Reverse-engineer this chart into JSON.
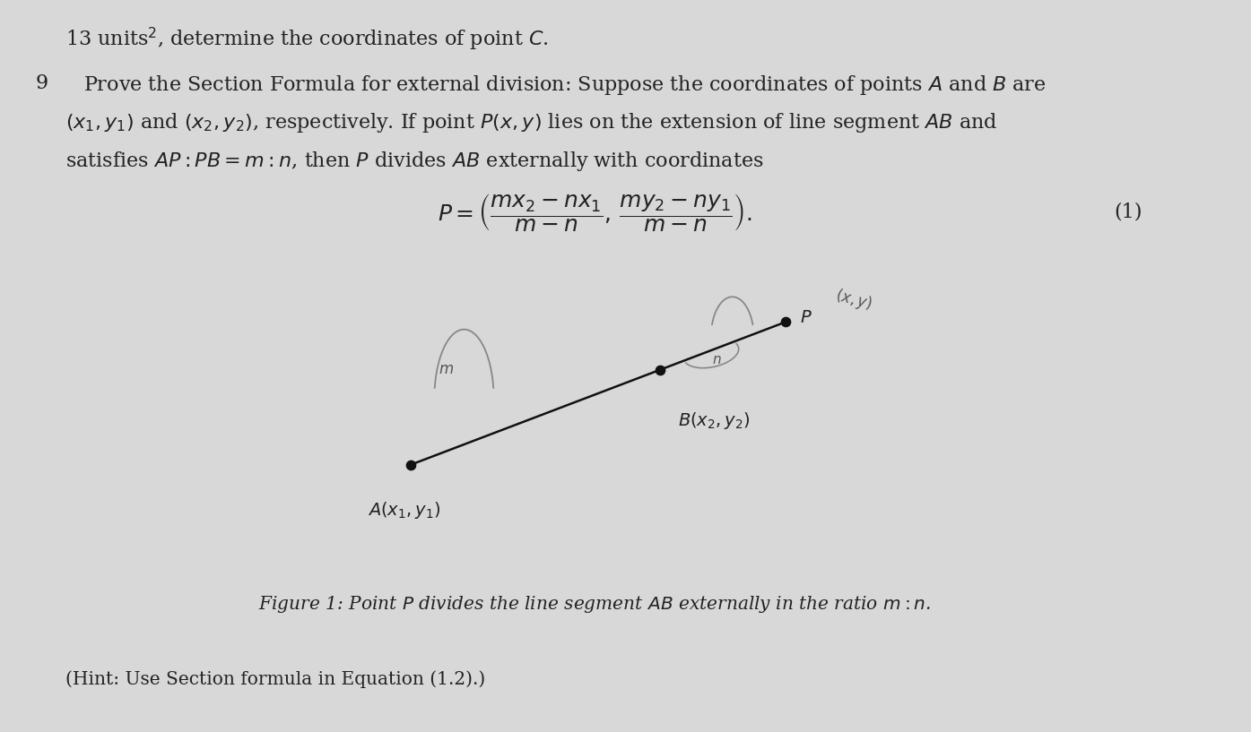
{
  "background_color": "#d8d8d8",
  "top_text": "13 units$^2$, determine the coordinates of point $C$.",
  "problem_number": "9",
  "problem_text_line1": "Prove the Section Formula for external division: Suppose the coordinates of points $A$ and $B$ are",
  "problem_text_line2": "$(x_1, y_1)$ and $(x_2, y_2)$, respectively. If point $P(x, y)$ lies on the extension of line segment $AB$ and",
  "problem_text_line3": "satisfies $AP : PB = m : n$, then $P$ divides $AB$ externally with coordinates",
  "formula": "$P = \\left(\\dfrac{mx_2 - nx_1}{m - n},\\, \\dfrac{my_2 - ny_1}{m - n}\\right).$",
  "equation_number": "(1)",
  "figure_caption": "Figure 1: Point $P$ divides the line segment $AB$ externally in the ratio $m : n$.",
  "hint_text": "(Hint: Use Section formula in Equation (1.2).)",
  "point_A": [
    0.345,
    0.365
  ],
  "point_B": [
    0.555,
    0.495
  ],
  "point_P": [
    0.66,
    0.56
  ],
  "label_A": "$A(x_1, y_1)$",
  "label_B": "$B(x_2, y_2)$",
  "label_P": "$P$",
  "label_P_handwritten": "$(x,y)$",
  "label_m": "$m$",
  "label_n": "$n$",
  "dot_color": "#111111",
  "line_color": "#111111",
  "arc_color": "#888888",
  "text_color": "#222222",
  "font_size_main": 16,
  "font_size_formula": 18,
  "font_size_caption": 14.5,
  "font_size_hint": 14.5,
  "font_size_diagram": 14
}
